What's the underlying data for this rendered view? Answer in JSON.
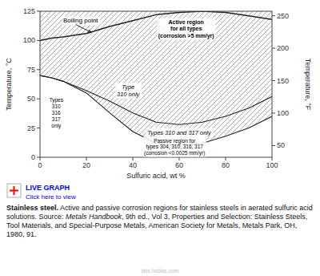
{
  "chart_data": {
    "type": "line",
    "xlabel": "Sulfuric acid, wt %",
    "ylabel": "Temperature, °C",
    "y2label": "Temperature, °F",
    "x": [
      0,
      5,
      10,
      20,
      30,
      40,
      50,
      60,
      70,
      80,
      90,
      100
    ],
    "xlim": [
      0,
      100
    ],
    "xticks": [
      0,
      20,
      40,
      60,
      80,
      100
    ],
    "ylim": [
      0,
      125
    ],
    "yticks": [
      0,
      25,
      50,
      75,
      100,
      125
    ],
    "y2lim": [
      32,
      257
    ],
    "y2ticks": [
      50,
      100,
      150,
      200,
      250
    ],
    "grid": false,
    "color": "#888888",
    "series": [
      {
        "color": "#222222",
        "values": [
          100,
          102,
          103,
          106,
          112,
          117,
          122,
          124,
          125,
          124,
          121,
          118
        ]
      },
      {
        "color": "#222222",
        "values": [
          70,
          68,
          65,
          57,
          48,
          38,
          30,
          28,
          30,
          35,
          42,
          52
        ]
      },
      {
        "color": "#222222",
        "values": [
          70,
          68,
          65,
          55,
          38,
          22,
          12,
          10,
          12,
          18,
          25,
          35
        ]
      }
    ],
    "annotations": [
      "Boiling point",
      "Active region\nfor all types\n(corrosion >5 mm/yr)",
      "Type\n310 only",
      "Types 310 and 317 only",
      "Passive region for\ntypes 304, 310, 316, 317\n(corrosion <0.0025 mm/yr)",
      "Types\n310\n316\n317\nonly"
    ],
    "link_text": "LIVE GRAPH",
    "link_subtext": "Click here to view",
    "caption": [
      "Stainless steel.",
      " Active and passive corrosion regions for stainless steels in aerated sulfuric acid solutions. Source: ",
      "Metals Handbook",
      ", 9th ed., Vol 3, Properties and Selection: Stainless Steels, Tool Materials, and Special-Purpose Metals, American Society for Metals, Metals Park, OH, 1980, 91."
    ],
    "watermark": "bbs.hcbbs.com"
  }
}
